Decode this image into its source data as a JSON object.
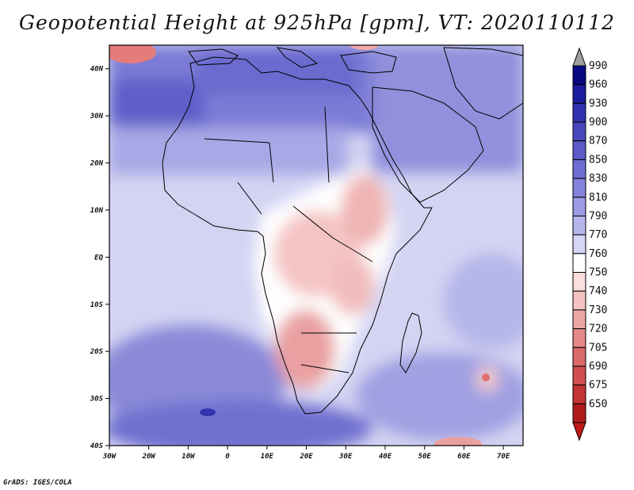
{
  "title": "Geopotential Height at 925hPa [gpm], VT: 2020110112",
  "credit": "GrADS: IGES/COLA",
  "map": {
    "region": "Africa",
    "lon_range": [
      -30,
      75
    ],
    "lat_range": [
      -40,
      45
    ],
    "lon_ticks": [
      "30W",
      "20W",
      "10W",
      "0",
      "10E",
      "20E",
      "30E",
      "40E",
      "50E",
      "60E",
      "70E"
    ],
    "lat_ticks": [
      "40N",
      "30N",
      "20N",
      "10N",
      "EQ",
      "10S",
      "20S",
      "30S",
      "40S"
    ]
  },
  "colorbar": {
    "labels": [
      "990",
      "960",
      "930",
      "900",
      "870",
      "850",
      "830",
      "810",
      "790",
      "770",
      "760",
      "750",
      "740",
      "730",
      "720",
      "705",
      "690",
      "675",
      "650"
    ],
    "colors": [
      "#080883",
      "#1c1c9e",
      "#3333b0",
      "#4747bd",
      "#5a5ac8",
      "#6e6ed2",
      "#8383dc",
      "#9b9be4",
      "#b5b5ec",
      "#d5d5f5",
      "#ffffff",
      "#fbdede",
      "#f5c2c2",
      "#eda6a6",
      "#e48888",
      "#db6a6a",
      "#d04e4e",
      "#c43434",
      "#b01c1c"
    ],
    "top_arrow_color": "#a0a0a0",
    "bottom_arrow_color": "#c01818"
  }
}
